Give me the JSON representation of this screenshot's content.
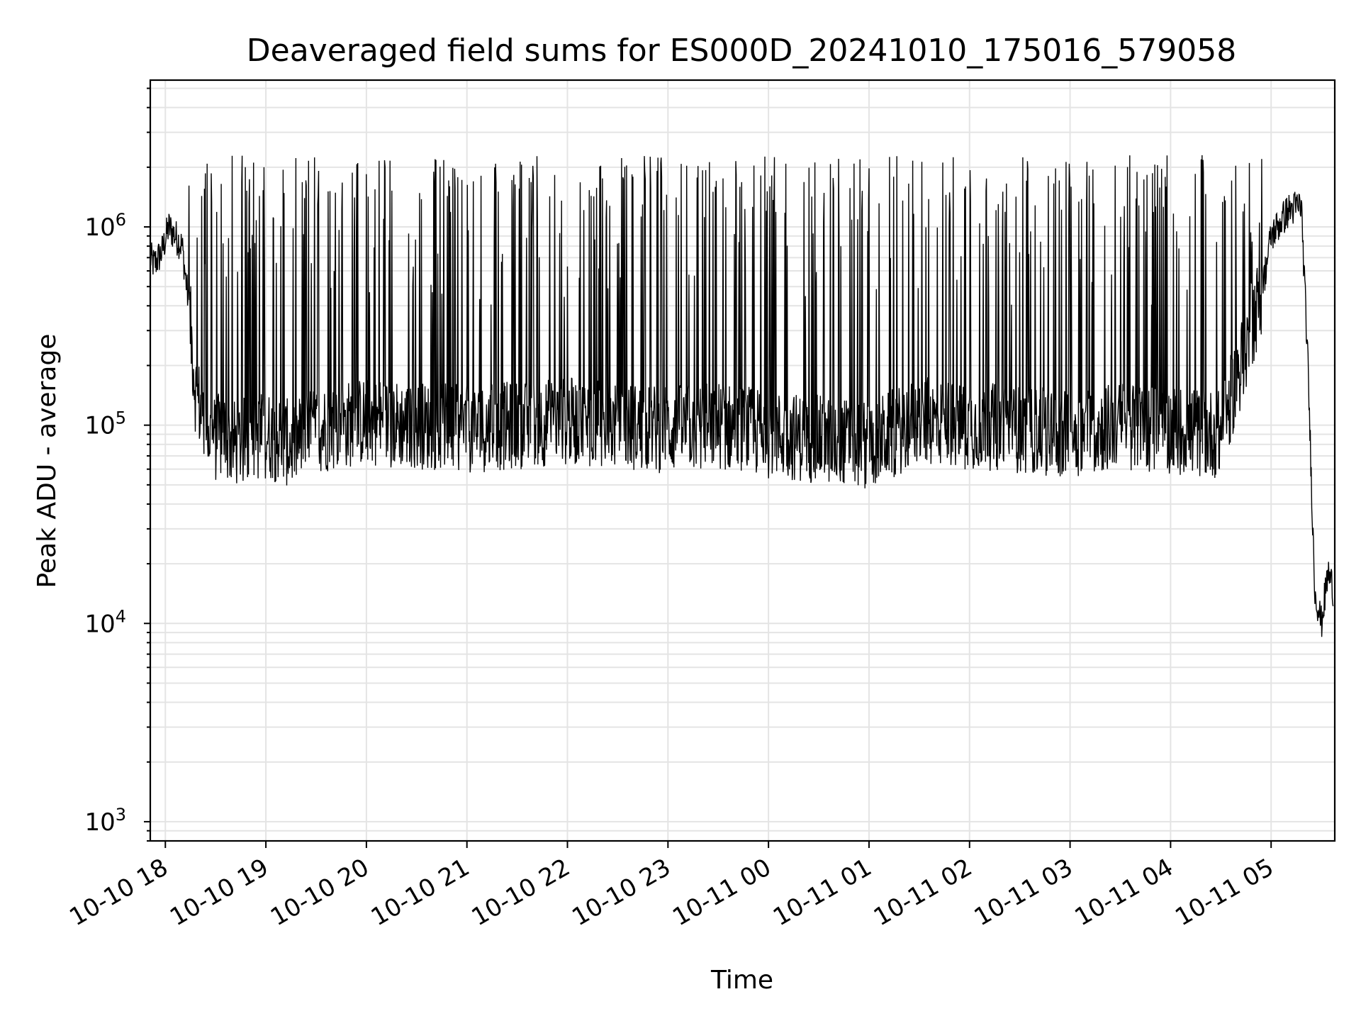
{
  "chart_data": {
    "type": "line",
    "title": "Deaveraged field sums for ES000D_20241010_175016_579058",
    "xlabel": "Time",
    "ylabel": "Peak ADU - average",
    "yscale": "log",
    "xlim": [
      "2024-10-10 17:51",
      "2024-10-11 05:38"
    ],
    "ylim": [
      800,
      5500000
    ],
    "grid": true,
    "line_color": "#000000",
    "x_tick_labels": [
      "10-10 18",
      "10-10 19",
      "10-10 20",
      "10-10 21",
      "10-10 22",
      "10-10 23",
      "10-11 00",
      "10-11 01",
      "10-11 02",
      "10-11 03",
      "10-11 04",
      "10-11 05"
    ],
    "y_tick_labels": [
      {
        "base": "10",
        "exp": "3",
        "value": 1000
      },
      {
        "base": "10",
        "exp": "4",
        "value": 10000
      },
      {
        "base": "10",
        "exp": "5",
        "value": 100000
      },
      {
        "base": "10",
        "exp": "6",
        "value": 1000000
      }
    ],
    "series": [
      {
        "x": [
          "2024-10-10 17:51",
          "2024-10-10 17:53",
          "2024-10-10 17:55",
          "2024-10-10 17:58",
          "2024-10-10 18:02",
          "2024-10-10 18:06",
          "2024-10-10 18:10",
          "2024-10-10 18:14",
          "2024-10-10 18:18",
          "2024-10-10 18:22",
          "2024-10-10 18:26",
          "2024-10-10 18:30",
          "2024-10-10 18:35",
          "2024-10-10 18:40",
          "2024-10-10 18:50",
          "2024-10-10 19:00",
          "2024-10-10 19:15",
          "2024-10-10 19:30",
          "2024-10-10 20:00",
          "2024-10-10 20:30",
          "2024-10-10 21:00",
          "2024-10-10 21:30",
          "2024-10-10 22:00",
          "2024-10-10 22:30",
          "2024-10-10 23:00",
          "2024-10-10 23:30",
          "2024-10-11 00:00",
          "2024-10-11 00:30",
          "2024-10-11 01:00",
          "2024-10-11 01:30",
          "2024-10-11 02:00",
          "2024-10-11 02:30",
          "2024-10-11 03:00",
          "2024-10-11 03:30",
          "2024-10-11 04:00",
          "2024-10-11 04:30",
          "2024-10-11 04:55",
          "2024-10-11 05:00",
          "2024-10-11 05:10",
          "2024-10-11 05:18",
          "2024-10-11 05:22",
          "2024-10-11 05:26",
          "2024-10-11 05:30",
          "2024-10-11 05:34",
          "2024-10-11 05:37"
        ],
        "y": [
          700000,
          650000,
          680000,
          750000,
          1000000,
          900000,
          800000,
          400000,
          150000,
          110000,
          90000,
          85000,
          90000,
          80000,
          85000,
          90000,
          80000,
          95000,
          105000,
          100000,
          95000,
          100000,
          105000,
          100000,
          95000,
          100000,
          90000,
          85000,
          80000,
          105000,
          100000,
          95000,
          90000,
          100000,
          95000,
          90000,
          500000,
          900000,
          1200000,
          1300000,
          200000,
          15000,
          10000,
          18000,
          15000
        ]
      }
    ]
  }
}
